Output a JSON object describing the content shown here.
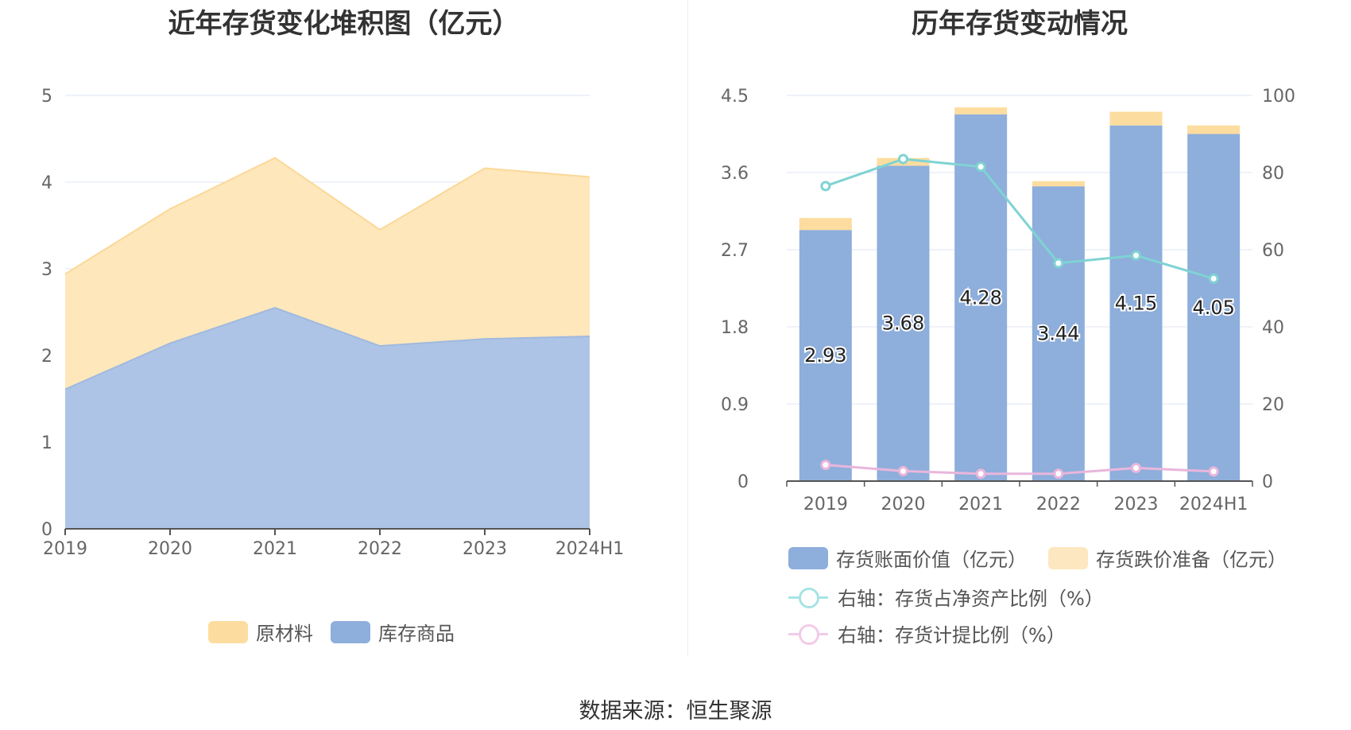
{
  "left_chart": {
    "title": "近年存货变化堆积图（亿元）",
    "legend": [
      {
        "name": "原材料",
        "color": "#fddd9f"
      },
      {
        "name": "库存商品",
        "color": "#8eaedb"
      }
    ]
  },
  "right_chart": {
    "title": "历年存货变动情况",
    "legend": [
      {
        "name": "存货账面价值（亿元）",
        "color": "#8eaedb"
      },
      {
        "name": "存货跌价准备（亿元）",
        "color": "#fde7c0"
      },
      {
        "name": "右轴：存货占净资产比例（%）",
        "color": "#7fd3d3"
      },
      {
        "name": "右轴：存货计提比例（%）",
        "color": "#f0bfe2"
      }
    ]
  },
  "source": "数据来源：恒生聚源",
  "chart_data": [
    {
      "type": "area",
      "stacked": true,
      "title": "近年存货变化堆积图（亿元）",
      "categories": [
        "2019",
        "2020",
        "2021",
        "2022",
        "2023",
        "2024H1"
      ],
      "ylim": [
        0,
        5
      ],
      "yticks": [
        "0",
        "1",
        "2",
        "3",
        "4",
        "5"
      ],
      "grid": true,
      "legend_position": "bottom",
      "series": [
        {
          "name": "库存商品",
          "values": [
            1.61,
            2.14,
            2.55,
            2.11,
            2.19,
            2.22
          ],
          "color": "#aec4e6"
        },
        {
          "name": "原材料",
          "values": [
            1.33,
            1.55,
            1.73,
            1.34,
            1.97,
            1.84
          ],
          "color": "#fee7bb"
        }
      ]
    },
    {
      "type": "bar",
      "stacked": true,
      "title": "历年存货变动情况",
      "categories": [
        "2019",
        "2020",
        "2021",
        "2022",
        "2023",
        "2024H1"
      ],
      "ylim": [
        0,
        4.5
      ],
      "yticks": [
        "0",
        "0.9",
        "1.8",
        "2.7",
        "3.6",
        "4.5"
      ],
      "y2lim": [
        0,
        100
      ],
      "y2ticks": [
        "0",
        "20",
        "40",
        "60",
        "80",
        "100"
      ],
      "grid": true,
      "legend_position": "bottom",
      "series": [
        {
          "name": "存货账面价值（亿元）",
          "values": [
            2.93,
            3.68,
            4.28,
            3.44,
            4.15,
            4.05
          ],
          "labels": [
            "2.93",
            "3.68",
            "4.28",
            "3.44",
            "4.15",
            "4.05"
          ],
          "color": "#8eaedb",
          "axis": "left"
        },
        {
          "name": "存货跌价准备（亿元）",
          "values": [
            0.14,
            0.09,
            0.08,
            0.06,
            0.16,
            0.1
          ],
          "color": "#fddd9f",
          "axis": "left"
        },
        {
          "name": "右轴：存货占净资产比例（%）",
          "type": "line",
          "values": [
            76.5,
            83.5,
            81.5,
            56.5,
            58.5,
            52.5
          ],
          "color": "#7fd3d3",
          "axis": "right"
        },
        {
          "name": "右轴：存货计提比例（%）",
          "type": "line",
          "values": [
            4.2,
            2.6,
            1.9,
            1.9,
            3.4,
            2.5
          ],
          "color": "#e9b6dc",
          "axis": "right"
        }
      ]
    }
  ]
}
